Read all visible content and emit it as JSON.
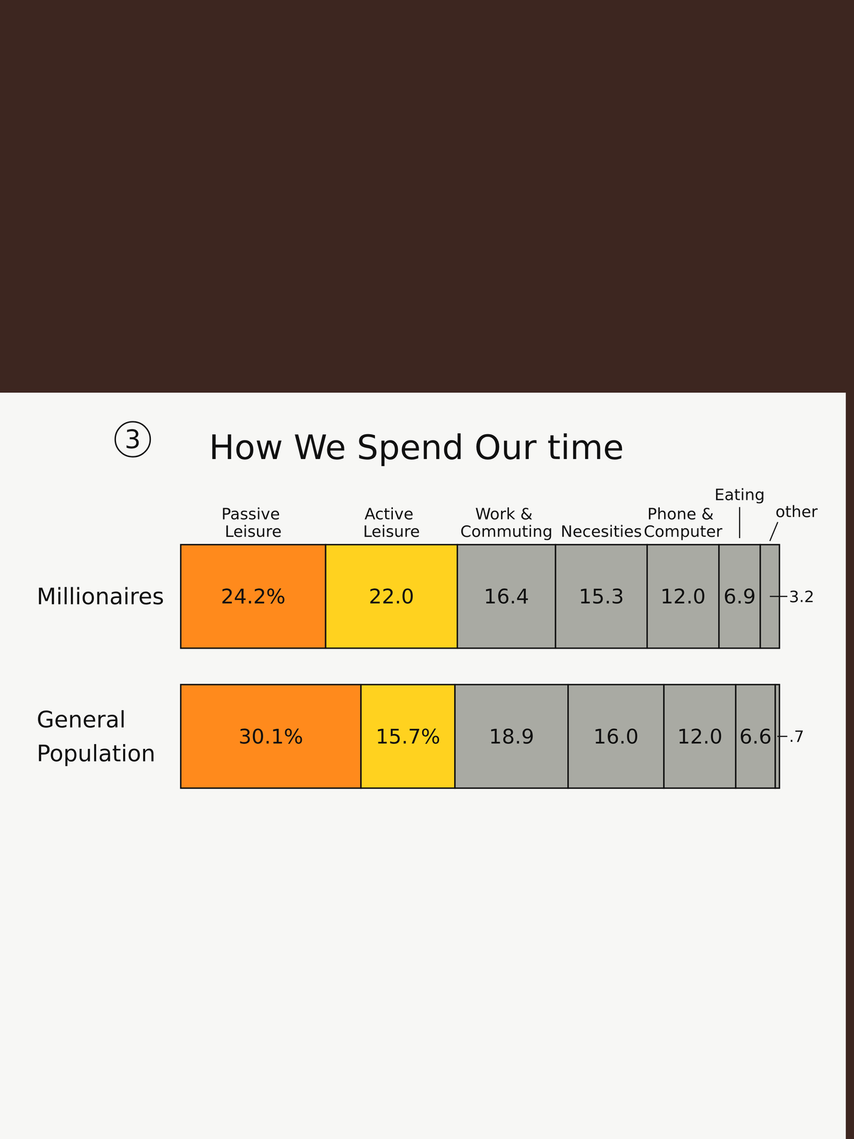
{
  "chart_data": {
    "type": "bar",
    "orientation": "horizontal",
    "stacked": true,
    "data_labels": true,
    "tick_labels": false,
    "title": "How We Spend Our time",
    "annotations": [
      "3"
    ],
    "categories": [
      "Millionaires",
      "General Population"
    ],
    "xlim": [
      0,
      100
    ],
    "series": [
      {
        "name": "Passive Leisure",
        "color": "#ff8a1c",
        "values": [
          24.2,
          30.1
        ],
        "value_labels": [
          "24.2%",
          "30.1%"
        ]
      },
      {
        "name": "Active Leisure",
        "color": "#ffd21f",
        "values": [
          22.0,
          15.7
        ],
        "value_labels": [
          "22.0",
          "15.7%"
        ]
      },
      {
        "name": "Work & Commuting",
        "color": "#a9aaa3",
        "values": [
          16.4,
          18.9
        ],
        "value_labels": [
          "16.4",
          "18.9"
        ]
      },
      {
        "name": "Necesities",
        "color": "#a9aaa3",
        "values": [
          15.3,
          16.0
        ],
        "value_labels": [
          "15.3",
          "16.0"
        ]
      },
      {
        "name": "Phone & Computer",
        "color": "#a9aaa3",
        "values": [
          12.0,
          12.0
        ],
        "value_labels": [
          "12.0",
          "12.0"
        ]
      },
      {
        "name": "Eating",
        "color": "#a9aaa3",
        "values": [
          6.9,
          6.6
        ],
        "value_labels": [
          "6.9",
          "6.6"
        ]
      },
      {
        "name": "other",
        "color": "#a9aaa3",
        "values": [
          3.2,
          0.7
        ],
        "value_labels": [
          "3.2",
          ".7"
        ]
      }
    ]
  }
}
